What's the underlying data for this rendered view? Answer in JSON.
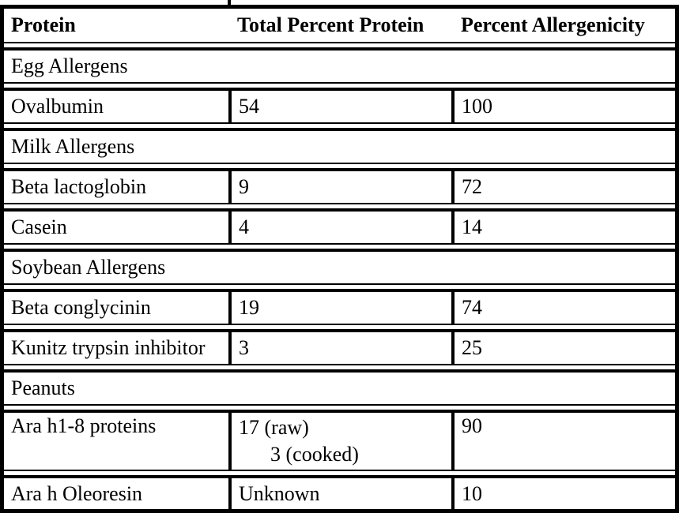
{
  "table": {
    "columns": [
      "Protein",
      "Total Percent Protein",
      "Percent Allergenicity"
    ],
    "sections": [
      {
        "title": "Egg Allergens",
        "rows": [
          {
            "protein": "Ovalbumin",
            "total": [
              "54"
            ],
            "allergenicity": "100"
          }
        ]
      },
      {
        "title": "Milk Allergens",
        "rows": [
          {
            "protein": "Beta lactoglobin",
            "total": [
              "9"
            ],
            "allergenicity": "72"
          },
          {
            "protein": "Casein",
            "total": [
              "4"
            ],
            "allergenicity": "14"
          }
        ]
      },
      {
        "title": "Soybean Allergens",
        "rows": [
          {
            "protein": "Beta conglycinin",
            "total": [
              "19"
            ],
            "allergenicity": "74"
          },
          {
            "protein": "Kunitz trypsin inhibitor",
            "total": [
              "3"
            ],
            "allergenicity": "25"
          }
        ]
      },
      {
        "title": "Peanuts",
        "rows": [
          {
            "protein": "Ara h1-8 proteins",
            "total": [
              "17 (raw)",
              "3 (cooked)"
            ],
            "allergenicity": "90"
          },
          {
            "protein": "Ara h Oleoresin",
            "total": [
              "Unknown"
            ],
            "allergenicity": "10"
          }
        ]
      }
    ]
  },
  "colors": {
    "border": "#000000",
    "text": "#000000",
    "background": "#ffffff"
  }
}
